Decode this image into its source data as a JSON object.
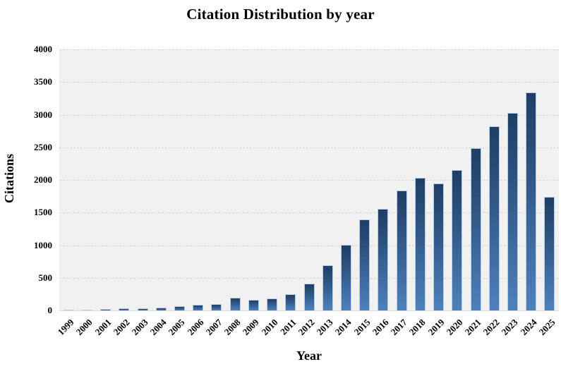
{
  "chart_data": {
    "type": "bar",
    "title": "Citation Distribution by year",
    "xlabel": "Year",
    "ylabel": "Citations",
    "categories": [
      "1999",
      "2000",
      "2001",
      "2002",
      "2003",
      "2004",
      "2005",
      "2006",
      "2007",
      "2008",
      "2009",
      "2010",
      "2011",
      "2012",
      "2013",
      "2014",
      "2015",
      "2016",
      "2017",
      "2018",
      "2019",
      "2020",
      "2021",
      "2022",
      "2023",
      "2024",
      "2025"
    ],
    "values": [
      15,
      5,
      20,
      35,
      30,
      45,
      70,
      90,
      95,
      190,
      160,
      180,
      250,
      415,
      690,
      1005,
      1390,
      1560,
      1835,
      2035,
      1945,
      2150,
      2490,
      2820,
      3025,
      3340,
      1745
    ],
    "ylim": [
      0,
      4000
    ],
    "yticks": [
      0,
      500,
      1000,
      1500,
      2000,
      2500,
      3000,
      3500,
      4000
    ],
    "grid": "horizontal-dashed",
    "legend": "none",
    "colors": {
      "bar_top": "#1f3e64",
      "bar_bottom": "#4e81ba",
      "bar_border": "#b6cde8",
      "plot_background": "#f1f1f1",
      "gridline": "#d4d4d4",
      "text": "#000000",
      "page_background": "#ffffff"
    }
  }
}
